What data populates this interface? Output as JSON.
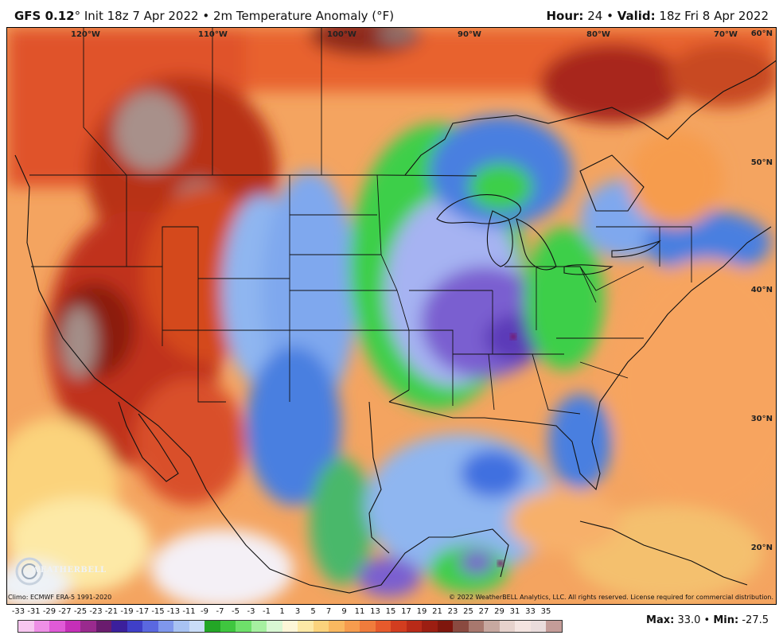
{
  "header": {
    "model": "GFS 0.12",
    "degree_symbol": "°",
    "init": "Init 18z 7 Apr 2022",
    "separator": "•",
    "product": "2m Temperature Anomaly (°F)",
    "hour_label": "Hour:",
    "hour_value": "24",
    "valid_label": "Valid:",
    "valid_value": "18z Fri 8 Apr 2022"
  },
  "map": {
    "lon_labels": [
      "120°W",
      "110°W",
      "100°W",
      "90°W",
      "80°W",
      "70°W"
    ],
    "lat_labels": [
      "60°N",
      "50°N",
      "40°N",
      "30°N",
      "20°N"
    ],
    "logo_text": "WEATHERBELL",
    "colors": {
      "ocean_warm": "#f7a45e",
      "land_hot": "#c0311c",
      "land_very_hot": "#8c1a10",
      "extreme_hot": "#a08c88",
      "cool_blue": "#4a7fe0",
      "light_blue": "#8fb6f0",
      "green": "#3dcf4a",
      "purple": "#7a5fd0",
      "pale_yellow": "#fde9a6"
    }
  },
  "footer": {
    "climo": "Climo: ECMWF ERA-5 1991-2020",
    "copyright": "© 2022 WeatherBELL Analytics, LLC. All rights reserved. License required for commercial distribution.",
    "max_label": "Max:",
    "max_value": "33.0",
    "min_label": "Min:",
    "min_value": "-27.5",
    "bullet": "•"
  },
  "scale": {
    "labels": [
      "-33",
      "-31",
      "-29",
      "-27",
      "-25",
      "-23",
      "-21",
      "-19",
      "-17",
      "-15",
      "-13",
      "-11",
      "-9",
      "-7",
      "-5",
      "-3",
      "-1",
      "1",
      "3",
      "5",
      "7",
      "9",
      "11",
      "13",
      "15",
      "17",
      "19",
      "21",
      "23",
      "25",
      "27",
      "29",
      "31",
      "33",
      "35"
    ],
    "colors": [
      "#f7c6f0",
      "#ee8fe6",
      "#e05ad7",
      "#c52fb8",
      "#9a2a8e",
      "#6a1c6e",
      "#3b1f9c",
      "#3f3fc8",
      "#5a68e0",
      "#7f97ec",
      "#a8c2f2",
      "#c9dcf7",
      "#23a626",
      "#3fc63f",
      "#6ee06a",
      "#a6f0a0",
      "#d9f7d3",
      "#fdf6d8",
      "#fde9a6",
      "#fbd37c",
      "#f9b860",
      "#f69c4e",
      "#f07c3c",
      "#e65a2c",
      "#d23d1f",
      "#b82a18",
      "#9c1e12",
      "#7f160d",
      "#8a4a40",
      "#a8786e",
      "#c7a8a0",
      "#e6d2cc",
      "#f4e4e0",
      "#eadcdc",
      "#c49c98"
    ]
  }
}
